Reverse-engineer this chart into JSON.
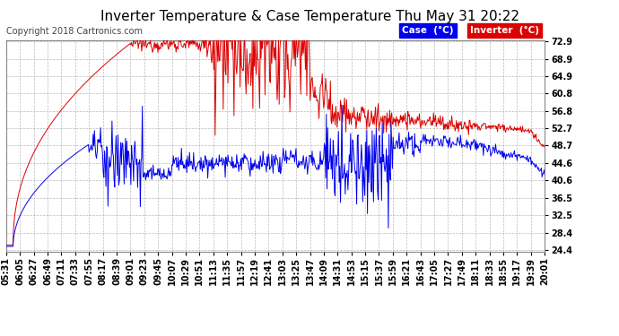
{
  "title": "Inverter Temperature & Case Temperature Thu May 31 20:22",
  "copyright": "Copyright 2018 Cartronics.com",
  "legend_case_label": "Case  (°C)",
  "legend_inverter_label": "Inverter  (°C)",
  "yticks": [
    24.4,
    28.4,
    32.5,
    36.5,
    40.6,
    44.6,
    48.7,
    52.7,
    56.8,
    60.8,
    64.9,
    68.9,
    72.9
  ],
  "xtick_labels": [
    "05:31",
    "06:05",
    "06:27",
    "06:49",
    "07:11",
    "07:33",
    "07:55",
    "08:17",
    "08:39",
    "09:01",
    "09:23",
    "09:45",
    "10:07",
    "10:29",
    "10:51",
    "11:13",
    "11:35",
    "11:57",
    "12:19",
    "12:41",
    "13:03",
    "13:25",
    "13:47",
    "14:09",
    "14:31",
    "14:53",
    "15:15",
    "15:37",
    "15:59",
    "16:21",
    "16:43",
    "17:05",
    "17:27",
    "17:49",
    "18:11",
    "18:33",
    "18:55",
    "19:17",
    "19:39",
    "20:01"
  ],
  "bg_color": "#ffffff",
  "grid_color": "#aaaaaa",
  "case_color": "#0000ee",
  "inverter_color": "#dd0000",
  "title_fontsize": 11,
  "copyright_fontsize": 7,
  "tick_fontsize": 7,
  "ylim_min": 24.4,
  "ylim_max": 72.9
}
